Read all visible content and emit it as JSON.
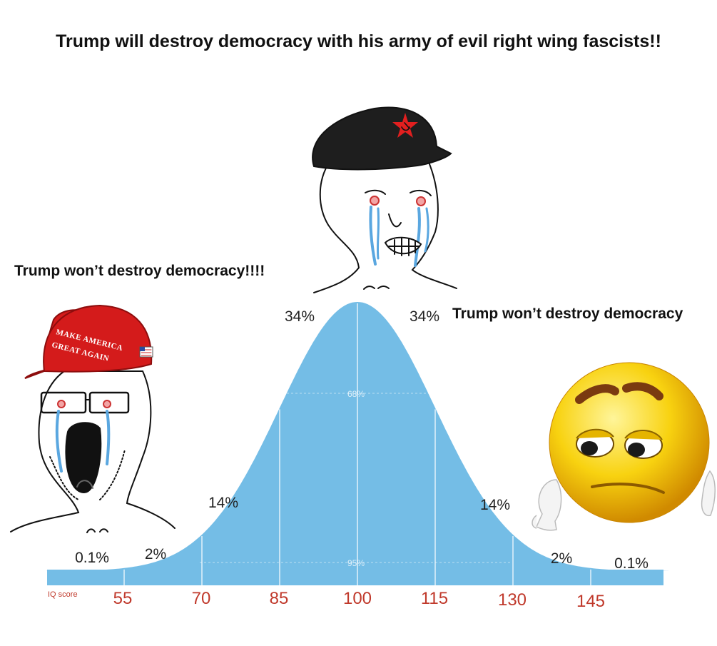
{
  "title": "Trump will destroy democracy with his army of evil right wing fascists!!",
  "captions": {
    "left": "Trump won’t destroy democracy!!!!",
    "right": "Trump won’t destroy democracy"
  },
  "figures": {
    "left": {
      "icon": "wojak-maga-crying-icon",
      "hat_line1": "MAKE AMERICA",
      "hat_line2": "GREAT AGAIN"
    },
    "center": {
      "icon": "wojak-communist-crying-icon"
    },
    "right": {
      "icon": "sad-emoji-icon"
    }
  },
  "chart_data": {
    "type": "area",
    "x_label": "IQ score",
    "x_ticks": [
      "55",
      "70",
      "85",
      "100",
      "115",
      "130",
      "145"
    ],
    "segments": [
      {
        "range": "<55",
        "percent": "0.1%"
      },
      {
        "range": "55-70",
        "percent": "2%"
      },
      {
        "range": "70-85",
        "percent": "14%"
      },
      {
        "range": "85-100",
        "percent": "34%"
      },
      {
        "range": "100-115",
        "percent": "34%"
      },
      {
        "range": "115-130",
        "percent": "14%"
      },
      {
        "range": "130-145",
        "percent": "2%"
      },
      {
        "range": ">145",
        "percent": "0.1%"
      }
    ],
    "inner_labels": [
      "68%",
      "95%"
    ],
    "mean": 100,
    "sd": 15,
    "fill_color": "#74bde6"
  }
}
